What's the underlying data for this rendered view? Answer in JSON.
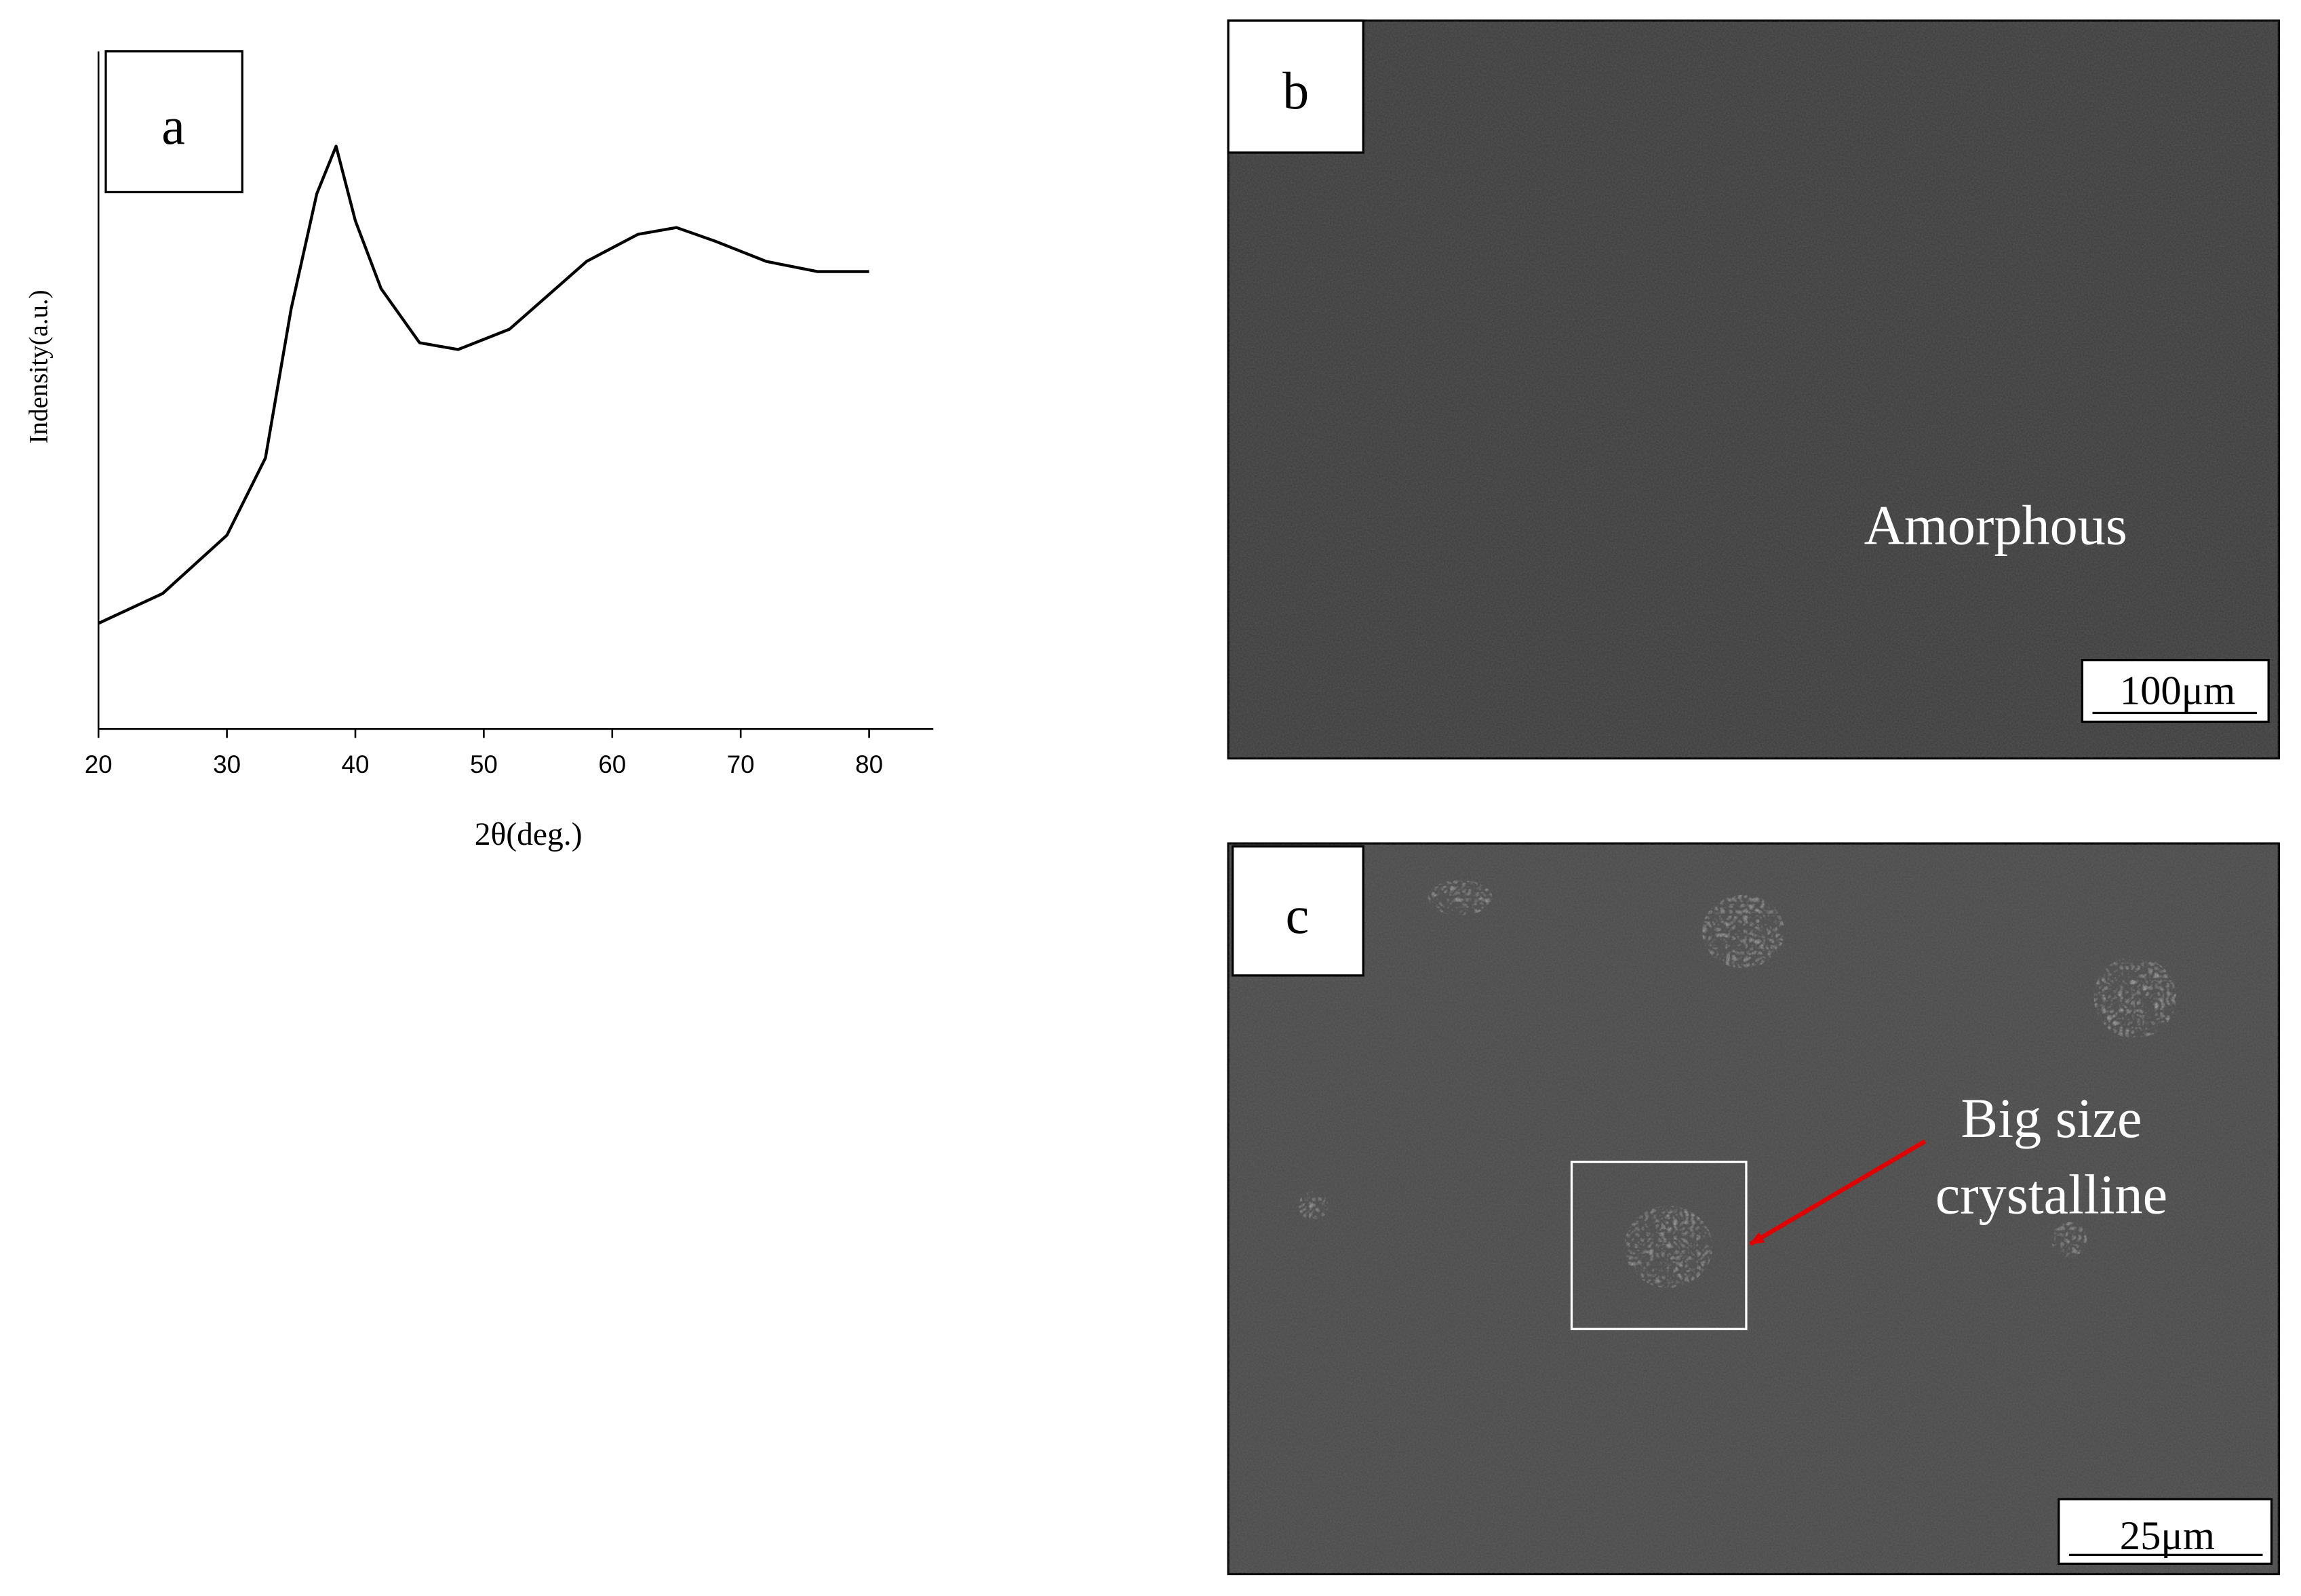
{
  "chart_data": {
    "type": "line",
    "panel_label": "a",
    "xlabel": "2θ(deg.)",
    "ylabel": "Indensity(a.u.)",
    "x": [
      20,
      25,
      30,
      33,
      35,
      37,
      38.5,
      40,
      42,
      45,
      48,
      52,
      55,
      58,
      62,
      65,
      68,
      72,
      76,
      80
    ],
    "values": [
      15.6,
      20,
      28.6,
      40,
      62,
      79,
      86,
      75,
      65,
      57,
      56,
      59,
      64,
      69,
      73,
      74,
      72,
      69,
      67.5,
      67.5
    ],
    "color": "#000000",
    "xlim": [
      20,
      85
    ],
    "ylim": [
      0,
      100
    ],
    "xticks": [
      20,
      30,
      40,
      50,
      60,
      70,
      80
    ]
  },
  "panels": [
    {
      "label": "b",
      "annotation": "Amorphous",
      "scale_bar": "100μm"
    },
    {
      "label": "c",
      "annotation": [
        "Big size",
        "crystalline"
      ],
      "scale_bar": "25μm"
    }
  ]
}
